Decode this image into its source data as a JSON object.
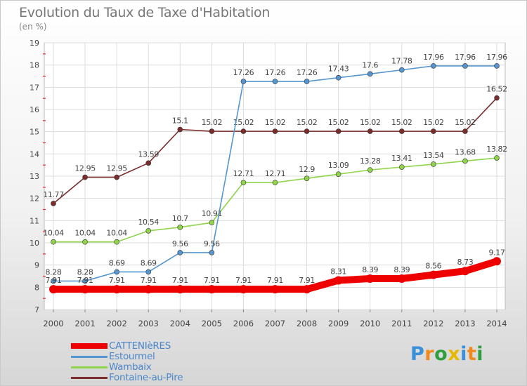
{
  "chart_data": {
    "type": "line",
    "title": "Evolution du Taux de Taxe d'Habitation",
    "subtitle": "(en %)",
    "x": [
      "2000",
      "2001",
      "2002",
      "2003",
      "2004",
      "2005",
      "2006",
      "2007",
      "2008",
      "2009",
      "2010",
      "2011",
      "2012",
      "2013",
      "2014"
    ],
    "ylim": [
      7,
      19
    ],
    "yticks": [
      7,
      8,
      9,
      10,
      11,
      12,
      13,
      14,
      15,
      16,
      17,
      18,
      19
    ],
    "grid": true,
    "legend_position": "bottom-left",
    "series": [
      {
        "name": "Fontaine-au-Pire",
        "color": "#7b2c2c",
        "values": [
          11.77,
          12.95,
          12.95,
          13.59,
          15.1,
          15.02,
          15.02,
          15.02,
          15.02,
          15.02,
          15.02,
          15.02,
          15.02,
          15.02,
          16.52
        ],
        "labels": [
          "11.77",
          "12.95",
          "12.95",
          "13.59",
          "15.1",
          "15.02",
          "15.02",
          "15.02",
          "15.02",
          "15.02",
          "15.02",
          "15.02",
          "15.02",
          "15.02",
          "16.52"
        ]
      },
      {
        "name": "Wambaix",
        "color": "#8fd44a",
        "values": [
          10.04,
          10.04,
          10.04,
          10.54,
          10.7,
          10.91,
          12.71,
          12.71,
          12.9,
          13.09,
          13.28,
          13.41,
          13.54,
          13.68,
          13.82
        ],
        "labels": [
          "10.04",
          "10.04",
          "10.04",
          "10.54",
          "10.7",
          "10.91",
          "12.71",
          "12.71",
          "12.9",
          "13.09",
          "13.28",
          "13.41",
          "13.54",
          "13.68",
          "13.82"
        ]
      },
      {
        "name": "Estourmel",
        "color": "#5596d0",
        "values": [
          8.28,
          8.28,
          8.69,
          8.69,
          9.56,
          9.56,
          17.26,
          17.26,
          17.26,
          17.43,
          17.6,
          17.78,
          17.96,
          17.96,
          17.96
        ],
        "labels": [
          "8.28",
          "8.28",
          "8.69",
          "8.69",
          "9.56",
          "9.56",
          "17.26",
          "17.26",
          "17.26",
          "17.43",
          "17.6",
          "17.78",
          "17.96",
          "17.96",
          "17.96"
        ]
      },
      {
        "name": "CATTENIèRES",
        "color": "#ee0000",
        "values": [
          7.91,
          7.91,
          7.91,
          7.91,
          7.91,
          7.91,
          7.91,
          7.91,
          7.91,
          8.31,
          8.39,
          8.39,
          8.56,
          8.73,
          9.17
        ],
        "labels": [
          "7.91",
          "7.91",
          "7.91",
          "7.91",
          "7.91",
          "7.91",
          "7.91",
          "7.91",
          "7.91",
          "8.31",
          "8.39",
          "8.39",
          "8.56",
          "8.73",
          "9.17"
        ]
      }
    ]
  },
  "legend": [
    {
      "label": "CATTENIèRES",
      "color": "#ee0000"
    },
    {
      "label": "Estourmel",
      "color": "#5596d0"
    },
    {
      "label": "Wambaix",
      "color": "#8fd44a"
    },
    {
      "label": "Fontaine-au-Pire",
      "color": "#7b2c2c"
    }
  ],
  "logo": {
    "letters": [
      "P",
      "r",
      "o",
      "x",
      "i",
      "t",
      "i"
    ],
    "colors": [
      "#3a8fd9",
      "#f08a1c",
      "#2f9e3f",
      "#e6b800",
      "#3a8fd9",
      "#f08a1c",
      "#2f9e3f"
    ]
  }
}
